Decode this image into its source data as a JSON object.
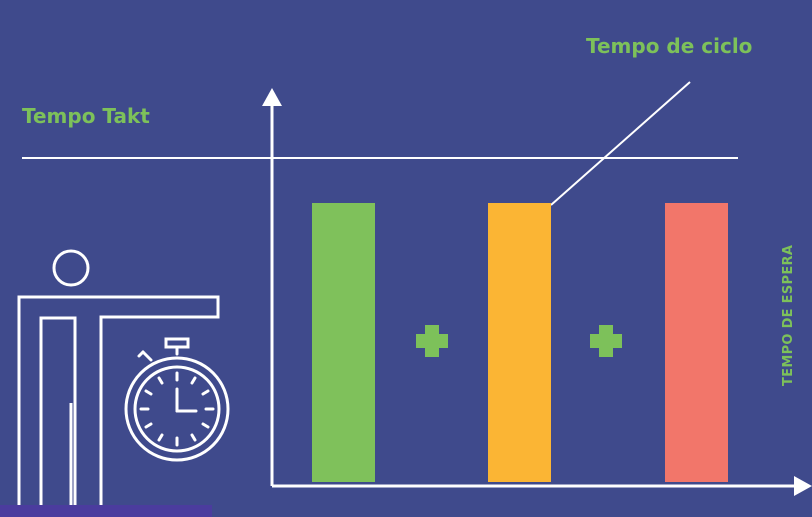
{
  "labels": {
    "takt_time": "Tempo Takt",
    "cycle_time": "Tempo de ciclo",
    "wait_time": "TEMPO DE ESPERA"
  },
  "colors": {
    "background": "#3f4a8c",
    "label_green": "#7dc15a",
    "line_white": "#ffffff",
    "bar_green": "#7fc15b",
    "bar_yellow": "#fbb534",
    "bar_red": "#f2766a",
    "plus_green": "#7dc15a"
  },
  "diagram": {
    "bars": [
      {
        "name": "bar-green",
        "color_key": "bar_green"
      },
      {
        "name": "bar-yellow",
        "color_key": "bar_yellow"
      },
      {
        "name": "bar-red",
        "color_key": "bar_red"
      }
    ],
    "operators": [
      "+",
      "+"
    ]
  }
}
